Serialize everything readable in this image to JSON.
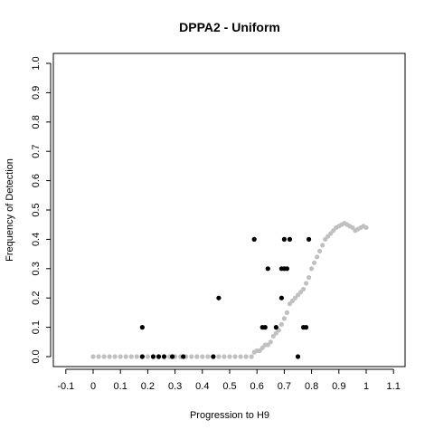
{
  "chart_data": {
    "type": "scatter",
    "title": "DPPA2 - Uniform",
    "xlabel": "Progression to H9",
    "ylabel": "Frequency of Detection",
    "xlim": [
      -0.1,
      1.1
    ],
    "ylim": [
      0.0,
      1.0
    ],
    "x_ticks": [
      "-0.1",
      "0",
      "0.1",
      "0.2",
      "0.3",
      "0.4",
      "0.5",
      "0.6",
      "0.7",
      "0.8",
      "0.9",
      "1",
      "1.1"
    ],
    "x_tick_values": [
      -0.1,
      0.0,
      0.1,
      0.2,
      0.3,
      0.4,
      0.5,
      0.6,
      0.7,
      0.8,
      0.9,
      1.0,
      1.1
    ],
    "y_ticks": [
      "0.0",
      "0.1",
      "0.2",
      "0.3",
      "0.4",
      "0.5",
      "0.6",
      "0.7",
      "0.8",
      "0.9",
      "1.0"
    ],
    "y_tick_values": [
      0.0,
      0.1,
      0.2,
      0.3,
      0.4,
      0.5,
      0.6,
      0.7,
      0.8,
      0.9,
      1.0
    ],
    "grid": false,
    "series": [
      {
        "color": "#c0c0c0",
        "points": [
          [
            0.0,
            0
          ],
          [
            0.02,
            0
          ],
          [
            0.04,
            0
          ],
          [
            0.06,
            0
          ],
          [
            0.08,
            0
          ],
          [
            0.1,
            0
          ],
          [
            0.12,
            0
          ],
          [
            0.14,
            0
          ],
          [
            0.16,
            0
          ],
          [
            0.18,
            0
          ],
          [
            0.2,
            0
          ],
          [
            0.22,
            0
          ],
          [
            0.24,
            0
          ],
          [
            0.26,
            0
          ],
          [
            0.28,
            0
          ],
          [
            0.3,
            0
          ],
          [
            0.32,
            0
          ],
          [
            0.34,
            0
          ],
          [
            0.36,
            0
          ],
          [
            0.38,
            0
          ],
          [
            0.4,
            0
          ],
          [
            0.42,
            0
          ],
          [
            0.44,
            0
          ],
          [
            0.46,
            0
          ],
          [
            0.48,
            0
          ],
          [
            0.5,
            0
          ],
          [
            0.52,
            0
          ],
          [
            0.54,
            0
          ],
          [
            0.56,
            0
          ],
          [
            0.58,
            0
          ],
          [
            0.59,
            0.015
          ],
          [
            0.6,
            0.02
          ],
          [
            0.61,
            0.02
          ],
          [
            0.62,
            0.03
          ],
          [
            0.63,
            0.04
          ],
          [
            0.64,
            0.04
          ],
          [
            0.65,
            0.05
          ],
          [
            0.66,
            0.07
          ],
          [
            0.67,
            0.08
          ],
          [
            0.68,
            0.09
          ],
          [
            0.69,
            0.11
          ],
          [
            0.7,
            0.13
          ],
          [
            0.71,
            0.15
          ],
          [
            0.72,
            0.18
          ],
          [
            0.73,
            0.19
          ],
          [
            0.74,
            0.2
          ],
          [
            0.75,
            0.21
          ],
          [
            0.76,
            0.22
          ],
          [
            0.77,
            0.23
          ],
          [
            0.78,
            0.25
          ],
          [
            0.79,
            0.27
          ],
          [
            0.8,
            0.3
          ],
          [
            0.81,
            0.32
          ],
          [
            0.82,
            0.34
          ],
          [
            0.83,
            0.36
          ],
          [
            0.84,
            0.38
          ],
          [
            0.85,
            0.4
          ],
          [
            0.86,
            0.41
          ],
          [
            0.87,
            0.42
          ],
          [
            0.88,
            0.43
          ],
          [
            0.89,
            0.44
          ],
          [
            0.9,
            0.445
          ],
          [
            0.91,
            0.45
          ],
          [
            0.92,
            0.455
          ],
          [
            0.93,
            0.45
          ],
          [
            0.94,
            0.445
          ],
          [
            0.95,
            0.44
          ],
          [
            0.96,
            0.43
          ],
          [
            0.97,
            0.435
          ],
          [
            0.98,
            0.44
          ],
          [
            0.99,
            0.445
          ],
          [
            1.0,
            0.44
          ]
        ]
      },
      {
        "color": "#000000",
        "points": [
          [
            0.18,
            0.1
          ],
          [
            0.18,
            0
          ],
          [
            0.22,
            0
          ],
          [
            0.24,
            0
          ],
          [
            0.26,
            0
          ],
          [
            0.29,
            0
          ],
          [
            0.33,
            0
          ],
          [
            0.44,
            0
          ],
          [
            0.46,
            0.2
          ],
          [
            0.59,
            0.4
          ],
          [
            0.62,
            0.1
          ],
          [
            0.63,
            0.1
          ],
          [
            0.64,
            0.3
          ],
          [
            0.67,
            0.1
          ],
          [
            0.69,
            0.2
          ],
          [
            0.69,
            0.3
          ],
          [
            0.7,
            0.4
          ],
          [
            0.7,
            0.3
          ],
          [
            0.71,
            0.3
          ],
          [
            0.72,
            0.4
          ],
          [
            0.75,
            0
          ],
          [
            0.77,
            0.1
          ],
          [
            0.78,
            0.1
          ],
          [
            0.79,
            0.4
          ]
        ]
      }
    ]
  }
}
